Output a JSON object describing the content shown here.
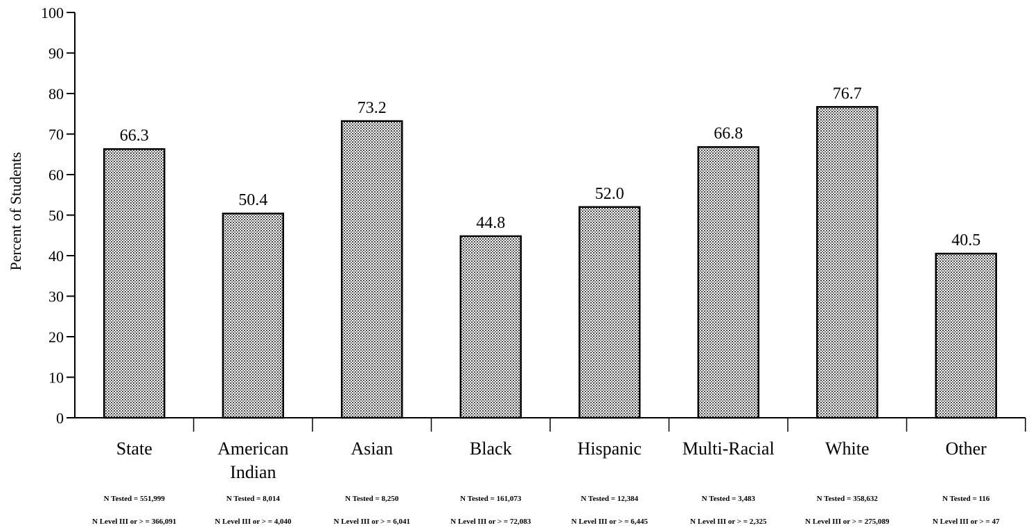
{
  "chart_data": {
    "type": "bar",
    "ylabel": "Percent of Students",
    "ylim": [
      0,
      100
    ],
    "yticks": [
      "0",
      "10",
      "20",
      "30",
      "40",
      "50",
      "60",
      "70",
      "80",
      "90",
      "100"
    ],
    "categories": [
      {
        "lines": [
          "State"
        ],
        "n_tested": "N Tested = 551,999",
        "n_level": "N Level III or > = 366,091"
      },
      {
        "lines": [
          "American",
          "Indian"
        ],
        "n_tested": "N Tested = 8,014",
        "n_level": "N Level III or > = 4,040"
      },
      {
        "lines": [
          "Asian"
        ],
        "n_tested": "N Tested = 8,250",
        "n_level": "N Level III or > = 6,041"
      },
      {
        "lines": [
          "Black"
        ],
        "n_tested": "N Tested = 161,073",
        "n_level": "N Level III or > = 72,083"
      },
      {
        "lines": [
          "Hispanic"
        ],
        "n_tested": "N Tested = 12,384",
        "n_level": "N Level III or > = 6,445"
      },
      {
        "lines": [
          "Multi-Racial"
        ],
        "n_tested": "N Tested = 3,483",
        "n_level": "N Level III or > = 2,325"
      },
      {
        "lines": [
          "White"
        ],
        "n_tested": "N Tested = 358,632",
        "n_level": "N Level III or > = 275,089"
      },
      {
        "lines": [
          "Other"
        ],
        "n_tested": "N Tested = 116",
        "n_level": "N Level III or > = 47"
      }
    ],
    "values": [
      66.3,
      50.4,
      73.2,
      44.8,
      52.0,
      66.8,
      76.7,
      40.5
    ],
    "value_labels": [
      "66.3",
      "50.4",
      "73.2",
      "44.8",
      "52.0",
      "66.8",
      "76.7",
      "40.5"
    ],
    "grid": false,
    "legend": "none",
    "bar_fill": "#d0d0d0",
    "bar_stroke": "#000000"
  }
}
